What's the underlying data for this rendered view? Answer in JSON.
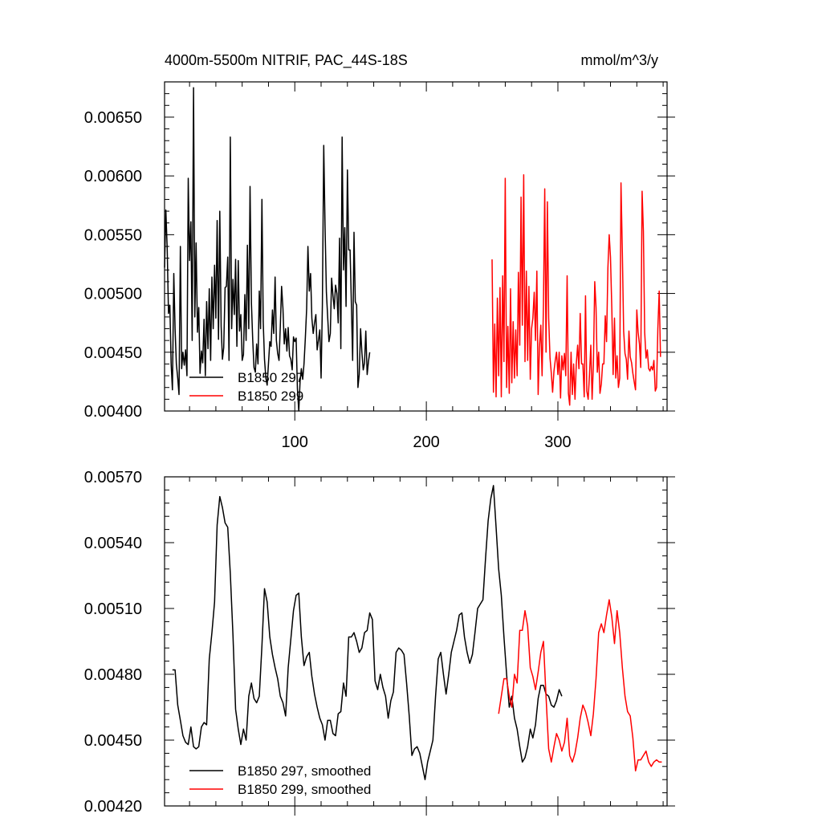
{
  "chart_data": [
    {
      "type": "line",
      "title": "4000m-5500m NITRIF, PAC_44S-18S",
      "units": "mmol/m^3/y",
      "xlim": [
        1,
        383
      ],
      "ylim": [
        0.004,
        0.0068
      ],
      "xticks": [
        100,
        200,
        300
      ],
      "xtick_labels": [
        "100",
        "200",
        "300"
      ],
      "yticks": [
        0.004,
        0.0045,
        0.005,
        0.0055,
        0.006,
        0.0065
      ],
      "ytick_labels": [
        "0.00400",
        "0.00450",
        "0.00500",
        "0.00550",
        "0.00600",
        "0.00650"
      ],
      "legend_position": "bottom-left",
      "series": [
        {
          "name": "B1850 297",
          "color": "#000000",
          "x_start": 1,
          "values": [
            0.00522,
            0.00571,
            0.00538,
            0.00483,
            0.0049,
            0.0044,
            0.00418,
            0.00517,
            0.0047,
            0.0044,
            0.00428,
            0.00414,
            0.0054,
            0.00436,
            0.0045,
            0.00439,
            0.00452,
            0.0043,
            0.00598,
            0.00528,
            0.00561,
            0.0046,
            0.00675,
            0.0048,
            0.00543,
            0.00467,
            0.00488,
            0.00432,
            0.00451,
            0.00441,
            0.00478,
            0.0043,
            0.00493,
            0.00453,
            0.00504,
            0.00443,
            0.00514,
            0.0047,
            0.00524,
            0.00479,
            0.00562,
            0.00461,
            0.0057,
            0.00472,
            0.00444,
            0.00454,
            0.00505,
            0.00506,
            0.00531,
            0.00443,
            0.00633,
            0.0047,
            0.00512,
            0.00482,
            0.00529,
            0.00455,
            0.00528,
            0.00468,
            0.00482,
            0.00443,
            0.00448,
            0.00499,
            0.0046,
            0.00541,
            0.0047,
            0.00591,
            0.00492,
            0.00461,
            0.00437,
            0.00433,
            0.00457,
            0.0044,
            0.00502,
            0.0047,
            0.0058,
            0.00476,
            0.00444,
            0.00428,
            0.00422,
            0.00441,
            0.00459,
            0.00455,
            0.00486,
            0.00466,
            0.00514,
            0.0046,
            0.00449,
            0.00443,
            0.00472,
            0.00506,
            0.00487,
            0.00457,
            0.0047,
            0.00451,
            0.00471,
            0.00447,
            0.00444,
            0.00435,
            0.00463,
            0.00459,
            0.00462,
            0.00419,
            0.004,
            0.00425,
            0.00436,
            0.00427,
            0.0044,
            0.00461,
            0.00487,
            0.0054,
            0.00502,
            0.00517,
            0.00479,
            0.00466,
            0.00475,
            0.00482,
            0.00452,
            0.0046,
            0.00469,
            0.00428,
            0.0049,
            0.00626,
            0.00558,
            0.00501,
            0.0048,
            0.00459,
            0.00466,
            0.00513,
            0.00498,
            0.00487,
            0.00507,
            0.005,
            0.00475,
            0.00547,
            0.00453,
            0.00633,
            0.0052,
            0.00556,
            0.00489,
            0.00605,
            0.00537,
            0.00537,
            0.00492,
            0.00443,
            0.00552,
            0.00493,
            0.0049,
            0.0042,
            0.00431,
            0.0047,
            0.0045,
            0.00435,
            0.00441,
            0.00468,
            0.00431,
            0.00442,
            0.0045
          ]
        },
        {
          "name": "B1850 299",
          "color": "#ff0000",
          "x_start": 250,
          "values": [
            0.00529,
            0.00416,
            0.00474,
            0.00412,
            0.00496,
            0.0043,
            0.00505,
            0.00412,
            0.00515,
            0.00442,
            0.00598,
            0.0042,
            0.00472,
            0.00415,
            0.00504,
            0.00424,
            0.00476,
            0.00428,
            0.00469,
            0.0043,
            0.00518,
            0.00456,
            0.00582,
            0.00473,
            0.00601,
            0.00442,
            0.00519,
            0.00443,
            0.00506,
            0.00427,
            0.0047,
            0.00479,
            0.00501,
            0.0046,
            0.00519,
            0.00414,
            0.00454,
            0.00473,
            0.0043,
            0.0049,
            0.00589,
            0.0045,
            0.00578,
            0.00479,
            0.00445,
            0.00432,
            0.00416,
            0.00434,
            0.00443,
            0.0045,
            0.00431,
            0.0045,
            0.00411,
            0.00447,
            0.00435,
            0.00449,
            0.0043,
            0.00515,
            0.00415,
            0.00405,
            0.0045,
            0.00414,
            0.0044,
            0.0041,
            0.0044,
            0.00456,
            0.00436,
            0.00483,
            0.0044,
            0.0044,
            0.00412,
            0.00498,
            0.00417,
            0.0041,
            0.0043,
            0.00456,
            0.0041,
            0.00439,
            0.0051,
            0.00488,
            0.00433,
            0.0045,
            0.00415,
            0.00423,
            0.0044,
            0.0044,
            0.00481,
            0.00459,
            0.00522,
            0.0055,
            0.00531,
            0.00486,
            0.00431,
            0.00479,
            0.00428,
            0.00447,
            0.0042,
            0.00428,
            0.00594,
            0.00534,
            0.00468,
            0.00449,
            0.00444,
            0.00427,
            0.00468,
            0.00446,
            0.00441,
            0.00432,
            0.00425,
            0.00418,
            0.00486,
            0.00467,
            0.00457,
            0.00437,
            0.00587,
            0.00553,
            0.00467,
            0.00445,
            0.00452,
            0.00436,
            0.00434,
            0.00438,
            0.00435,
            0.00443,
            0.00417,
            0.0042,
            0.0047,
            0.00502,
            0.00446
          ]
        }
      ]
    },
    {
      "type": "line",
      "xlim": [
        1,
        383
      ],
      "ylim": [
        0.0042,
        0.0057
      ],
      "xticks": [
        100,
        200,
        300
      ],
      "yticks": [
        0.0042,
        0.0045,
        0.0048,
        0.0051,
        0.0054,
        0.0057
      ],
      "ytick_labels": [
        "0.00420",
        "0.00450",
        "0.00480",
        "0.00510",
        "0.00540",
        "0.00570"
      ],
      "legend_position": "bottom-left",
      "series": [
        {
          "name": "B1850 297, smoothed",
          "color": "#000000",
          "x": [
            7,
            9,
            11,
            13,
            15,
            17,
            19,
            21,
            23,
            25,
            27,
            29,
            31,
            33,
            35,
            37,
            39,
            41,
            43,
            45,
            47,
            49,
            51,
            53,
            55,
            57,
            59,
            61,
            63,
            65,
            67,
            69,
            71,
            73,
            75,
            77,
            79,
            81,
            83,
            85,
            87,
            89,
            91,
            93,
            95,
            97,
            99,
            101,
            103,
            105,
            107,
            109,
            111,
            113,
            115,
            117,
            119,
            121,
            123,
            125,
            127,
            129,
            131,
            133,
            135,
            137,
            139,
            141,
            143,
            145,
            147,
            149,
            151,
            153,
            155,
            157,
            159,
            161,
            163,
            165,
            167,
            169,
            171,
            173,
            175,
            177,
            179,
            181,
            183,
            185,
            187,
            189,
            191,
            193,
            195,
            197,
            199,
            201,
            203,
            205,
            207,
            209,
            211,
            213,
            215,
            217,
            219,
            221,
            223,
            225,
            227,
            229,
            231,
            233,
            235,
            237,
            239,
            241,
            243,
            245,
            247,
            249,
            251,
            253,
            255,
            257,
            259,
            261,
            263,
            265,
            267,
            269,
            271,
            273,
            275,
            277,
            279,
            281,
            283,
            285,
            287,
            289,
            291,
            293,
            295,
            297,
            299,
            301,
            303
          ],
          "values": [
            0.00482,
            0.00482,
            0.00466,
            0.00459,
            0.00452,
            0.00449,
            0.00448,
            0.00456,
            0.00447,
            0.00446,
            0.00447,
            0.00456,
            0.00458,
            0.00457,
            0.00487,
            0.00499,
            0.00513,
            0.00548,
            0.00561,
            0.00556,
            0.00549,
            0.00547,
            0.00526,
            0.00498,
            0.00464,
            0.00455,
            0.00448,
            0.00455,
            0.0045,
            0.0047,
            0.00476,
            0.00469,
            0.00467,
            0.0047,
            0.00493,
            0.00519,
            0.00513,
            0.00497,
            0.00489,
            0.00483,
            0.00478,
            0.0047,
            0.00467,
            0.00461,
            0.00483,
            0.00496,
            0.00509,
            0.00516,
            0.00517,
            0.00497,
            0.00484,
            0.00488,
            0.0049,
            0.00479,
            0.00471,
            0.00465,
            0.0046,
            0.00457,
            0.0045,
            0.00459,
            0.00459,
            0.00453,
            0.00452,
            0.00462,
            0.00463,
            0.00476,
            0.0047,
            0.00497,
            0.00497,
            0.00499,
            0.00495,
            0.0049,
            0.00492,
            0.00499,
            0.005,
            0.00508,
            0.00505,
            0.00477,
            0.00473,
            0.0048,
            0.00474,
            0.0047,
            0.0046,
            0.00468,
            0.00472,
            0.0049,
            0.00492,
            0.00491,
            0.00489,
            0.00476,
            0.00461,
            0.00443,
            0.00446,
            0.00447,
            0.00444,
            0.00438,
            0.00432,
            0.0044,
            0.00445,
            0.0045,
            0.0047,
            0.00487,
            0.0049,
            0.0048,
            0.00471,
            0.0048,
            0.0049,
            0.00495,
            0.005,
            0.00507,
            0.00508,
            0.00497,
            0.0049,
            0.00485,
            0.00489,
            0.00499,
            0.0051,
            0.00512,
            0.00514,
            0.00533,
            0.0055,
            0.0056,
            0.00566,
            0.00547,
            0.00528,
            0.00516,
            0.00497,
            0.0048,
            0.00465,
            0.0047,
            0.0046,
            0.00455,
            0.00447,
            0.0044,
            0.00442,
            0.00447,
            0.00455,
            0.00451,
            0.00457,
            0.00469,
            0.00475,
            0.00475,
            0.00471,
            0.0047,
            0.00466,
            0.00465,
            0.00468,
            0.00473,
            0.0047
          ]
        },
        {
          "name": "B1850 299, smoothed",
          "color": "#ff0000",
          "x": [
            255,
            257,
            259,
            261,
            263,
            265,
            267,
            269,
            271,
            273,
            275,
            277,
            279,
            281,
            283,
            285,
            287,
            289,
            291,
            293,
            295,
            297,
            299,
            301,
            303,
            305,
            307,
            309,
            311,
            313,
            315,
            317,
            319,
            321,
            323,
            325,
            327,
            329,
            331,
            333,
            335,
            337,
            339,
            341,
            343,
            345,
            347,
            349,
            351,
            353,
            355,
            357,
            359,
            361,
            363,
            365,
            367,
            369,
            371,
            373,
            375,
            377,
            379
          ],
          "values": [
            0.00462,
            0.0047,
            0.00478,
            0.00478,
            0.0047,
            0.00465,
            0.0048,
            0.00476,
            0.005,
            0.005,
            0.00509,
            0.00502,
            0.00483,
            0.00479,
            0.00473,
            0.00481,
            0.0049,
            0.00495,
            0.0047,
            0.00446,
            0.0044,
            0.00447,
            0.00453,
            0.0045,
            0.00445,
            0.00449,
            0.0046,
            0.00443,
            0.0044,
            0.00444,
            0.00451,
            0.0046,
            0.00466,
            0.00463,
            0.00458,
            0.00452,
            0.00462,
            0.00478,
            0.00499,
            0.00503,
            0.00499,
            0.00507,
            0.00514,
            0.00506,
            0.00494,
            0.00509,
            0.00499,
            0.00483,
            0.0047,
            0.00463,
            0.00461,
            0.00451,
            0.00436,
            0.00441,
            0.00441,
            0.00443,
            0.00445,
            0.0044,
            0.00438,
            0.0044,
            0.00441,
            0.0044,
            0.0044
          ]
        }
      ]
    }
  ]
}
